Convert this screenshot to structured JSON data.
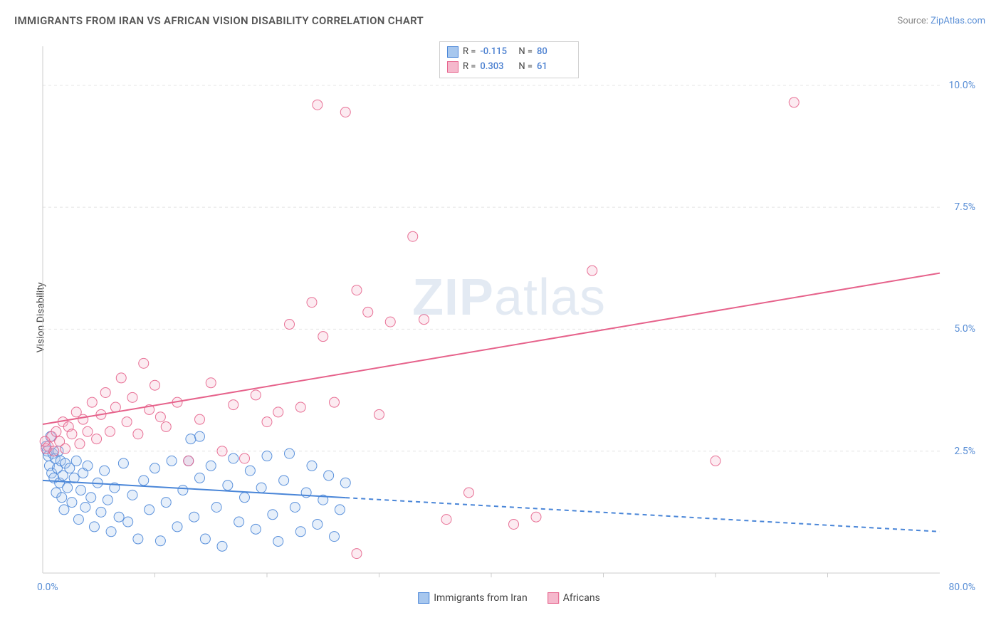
{
  "title": "IMMIGRANTS FROM IRAN VS AFRICAN VISION DISABILITY CORRELATION CHART",
  "source_prefix": "Source: ",
  "source_link": "ZipAtlas.com",
  "ylabel": "Vision Disability",
  "watermark_bold": "ZIP",
  "watermark_rest": "atlas",
  "chart": {
    "type": "scatter",
    "xlim": [
      0,
      80
    ],
    "ylim": [
      0,
      10.8
    ],
    "x_tick_min": "0.0%",
    "x_tick_max": "80.0%",
    "y_ticks": [
      {
        "v": 2.5,
        "label": "2.5%"
      },
      {
        "v": 5.0,
        "label": "5.0%"
      },
      {
        "v": 7.5,
        "label": "7.5%"
      },
      {
        "v": 10.0,
        "label": "10.0%"
      }
    ],
    "x_minor_ticks": [
      10,
      20,
      30,
      40,
      50,
      60,
      70
    ],
    "background_color": "#ffffff",
    "grid_color": "#e4e4e4",
    "axis_color": "#cccccc",
    "marker_radius": 7,
    "marker_fill_opacity": 0.28,
    "marker_stroke_opacity": 0.9,
    "trend_line_width": 2,
    "series": [
      {
        "name": "Immigrants from Iran",
        "color": "#4a86d8",
        "fill": "#a7c7ee",
        "R": "-0.115",
        "N": "80",
        "trend": {
          "x1": 0,
          "y1": 1.9,
          "x2": 80,
          "y2": 0.85,
          "solid_until_x": 27
        },
        "points": [
          [
            0.3,
            2.6
          ],
          [
            0.4,
            2.5
          ],
          [
            0.5,
            2.4
          ],
          [
            0.6,
            2.2
          ],
          [
            0.7,
            2.8
          ],
          [
            0.8,
            2.05
          ],
          [
            0.9,
            2.45
          ],
          [
            1.0,
            1.95
          ],
          [
            1.1,
            2.35
          ],
          [
            1.2,
            1.65
          ],
          [
            1.3,
            2.15
          ],
          [
            1.4,
            2.5
          ],
          [
            1.5,
            1.85
          ],
          [
            1.6,
            2.3
          ],
          [
            1.7,
            1.55
          ],
          [
            1.8,
            2.0
          ],
          [
            1.9,
            1.3
          ],
          [
            2.0,
            2.25
          ],
          [
            2.2,
            1.75
          ],
          [
            2.4,
            2.15
          ],
          [
            2.6,
            1.45
          ],
          [
            2.8,
            1.95
          ],
          [
            3.0,
            2.3
          ],
          [
            3.2,
            1.1
          ],
          [
            3.4,
            1.7
          ],
          [
            3.6,
            2.05
          ],
          [
            3.8,
            1.35
          ],
          [
            4.0,
            2.2
          ],
          [
            4.3,
            1.55
          ],
          [
            4.6,
            0.95
          ],
          [
            4.9,
            1.85
          ],
          [
            5.2,
            1.25
          ],
          [
            5.5,
            2.1
          ],
          [
            5.8,
            1.5
          ],
          [
            6.1,
            0.85
          ],
          [
            6.4,
            1.75
          ],
          [
            6.8,
            1.15
          ],
          [
            7.2,
            2.25
          ],
          [
            7.6,
            1.05
          ],
          [
            8.0,
            1.6
          ],
          [
            8.5,
            0.7
          ],
          [
            9.0,
            1.9
          ],
          [
            9.5,
            1.3
          ],
          [
            10.0,
            2.15
          ],
          [
            10.5,
            0.66
          ],
          [
            11.0,
            1.45
          ],
          [
            11.5,
            2.3
          ],
          [
            12.0,
            0.95
          ],
          [
            12.5,
            1.7
          ],
          [
            13.0,
            2.3
          ],
          [
            13.2,
            2.75
          ],
          [
            13.5,
            1.15
          ],
          [
            14.0,
            1.95
          ],
          [
            14.5,
            0.7
          ],
          [
            15.0,
            2.2
          ],
          [
            15.5,
            1.35
          ],
          [
            16.0,
            0.55
          ],
          [
            16.5,
            1.8
          ],
          [
            17.0,
            2.35
          ],
          [
            17.5,
            1.05
          ],
          [
            18.0,
            1.55
          ],
          [
            18.5,
            2.1
          ],
          [
            19.0,
            0.9
          ],
          [
            19.5,
            1.75
          ],
          [
            20.0,
            2.4
          ],
          [
            14.0,
            2.8
          ],
          [
            20.5,
            1.2
          ],
          [
            21.0,
            0.65
          ],
          [
            21.5,
            1.9
          ],
          [
            22.0,
            2.45
          ],
          [
            22.5,
            1.35
          ],
          [
            23.0,
            0.85
          ],
          [
            23.5,
            1.65
          ],
          [
            24.0,
            2.2
          ],
          [
            24.5,
            1.0
          ],
          [
            25.0,
            1.5
          ],
          [
            25.5,
            2.0
          ],
          [
            26.0,
            0.75
          ],
          [
            26.5,
            1.3
          ],
          [
            27.0,
            1.85
          ]
        ]
      },
      {
        "name": "Africans",
        "color": "#e6628b",
        "fill": "#f5b8cc",
        "R": "0.303",
        "N": "61",
        "trend": {
          "x1": 0,
          "y1": 3.05,
          "x2": 80,
          "y2": 6.15,
          "solid_until_x": 80
        },
        "points": [
          [
            0.5,
            2.6
          ],
          [
            0.8,
            2.8
          ],
          [
            1.0,
            2.5
          ],
          [
            1.2,
            2.9
          ],
          [
            1.5,
            2.7
          ],
          [
            1.8,
            3.1
          ],
          [
            2.0,
            2.55
          ],
          [
            2.3,
            3.0
          ],
          [
            2.6,
            2.85
          ],
          [
            3.0,
            3.3
          ],
          [
            3.3,
            2.65
          ],
          [
            3.6,
            3.15
          ],
          [
            4.0,
            2.9
          ],
          [
            4.4,
            3.5
          ],
          [
            4.8,
            2.75
          ],
          [
            5.2,
            3.25
          ],
          [
            5.6,
            3.7
          ],
          [
            6.0,
            2.9
          ],
          [
            6.5,
            3.4
          ],
          [
            7.0,
            4.0
          ],
          [
            7.5,
            3.1
          ],
          [
            8.0,
            3.6
          ],
          [
            8.5,
            2.85
          ],
          [
            9.0,
            4.3
          ],
          [
            9.5,
            3.35
          ],
          [
            10.0,
            3.85
          ],
          [
            10.5,
            3.2
          ],
          [
            11.0,
            3.0
          ],
          [
            12.0,
            3.5
          ],
          [
            13.0,
            2.3
          ],
          [
            14.0,
            3.15
          ],
          [
            15.0,
            3.9
          ],
          [
            16.0,
            2.5
          ],
          [
            17.0,
            3.45
          ],
          [
            18.0,
            2.35
          ],
          [
            19.0,
            3.65
          ],
          [
            20.0,
            3.1
          ],
          [
            21.0,
            3.3
          ],
          [
            22.0,
            5.1
          ],
          [
            23.0,
            3.4
          ],
          [
            24.0,
            5.55
          ],
          [
            24.5,
            9.6
          ],
          [
            25.0,
            4.85
          ],
          [
            26.0,
            3.5
          ],
          [
            27.0,
            9.45
          ],
          [
            28.0,
            5.8
          ],
          [
            29.0,
            5.35
          ],
          [
            30.0,
            3.25
          ],
          [
            31.0,
            5.15
          ],
          [
            33.0,
            6.9
          ],
          [
            34.0,
            5.2
          ],
          [
            28.0,
            0.4
          ],
          [
            36.0,
            1.1
          ],
          [
            38.0,
            1.65
          ],
          [
            42.0,
            1.0
          ],
          [
            44.0,
            1.15
          ],
          [
            49.0,
            6.2
          ],
          [
            60.0,
            2.3
          ],
          [
            67.0,
            9.65
          ],
          [
            0.3,
            2.55
          ],
          [
            0.2,
            2.7
          ]
        ]
      }
    ]
  },
  "legend_top": {
    "rows": [
      {
        "sw_fill": "#a7c7ee",
        "sw_border": "#4a86d8",
        "r_label": "R =",
        "r_val": "-0.115",
        "n_label": "N =",
        "n_val": "80"
      },
      {
        "sw_fill": "#f5b8cc",
        "sw_border": "#e6628b",
        "r_label": "R =",
        "r_val": "0.303",
        "n_label": "N =",
        "n_val": "61"
      }
    ]
  },
  "legend_bottom": {
    "items": [
      {
        "sw_fill": "#a7c7ee",
        "sw_border": "#4a86d8",
        "label": "Immigrants from Iran"
      },
      {
        "sw_fill": "#f5b8cc",
        "sw_border": "#e6628b",
        "label": "Africans"
      }
    ]
  }
}
